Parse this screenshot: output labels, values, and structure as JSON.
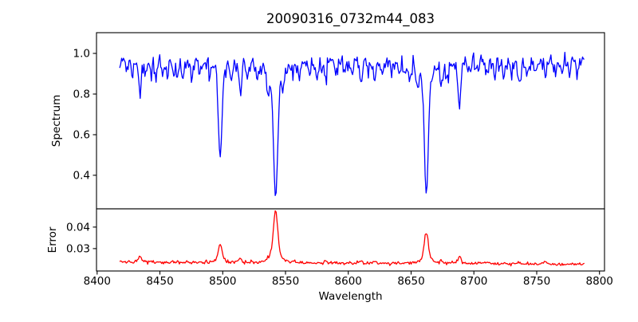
{
  "figure": {
    "background": "#ffffff",
    "axes_color": "#000000"
  },
  "chart_data": {
    "type": "line",
    "title": "20090316_0732m44_083",
    "xlabel": "Wavelength",
    "x_ticks": [
      8400,
      8450,
      8500,
      8550,
      8600,
      8650,
      8700,
      8750,
      8800
    ],
    "xlim": [
      8399.5,
      8804
    ],
    "x_start": 8418,
    "x_end": 8788,
    "n_points": 500,
    "seed": 20090316,
    "grid": false,
    "legend": "none",
    "panels": [
      {
        "name": "spectrum",
        "ylabel": "Spectrum",
        "line_color": "#0000ff",
        "ylim": [
          0.235,
          1.102
        ],
        "y_ticks": [
          0.4,
          0.6,
          0.8,
          1.0
        ],
        "y_tick_labels": [
          "0.4",
          "0.6",
          "0.8",
          "1.0"
        ],
        "continuum": 0.96,
        "noise_std": 0.021,
        "major_lines": [
          {
            "center": 8498.0,
            "depth": 0.4,
            "sigma": 1.3,
            "wing_depth": 0.075,
            "wing_gamma": 3.5,
            "min_flux": 0.49
          },
          {
            "center": 8542.1,
            "depth": 0.545,
            "sigma": 1.6,
            "wing_depth": 0.125,
            "wing_gamma": 6.0,
            "min_flux": 0.29
          },
          {
            "center": 8662.1,
            "depth": 0.525,
            "sigma": 1.5,
            "wing_depth": 0.12,
            "wing_gamma": 5.5,
            "min_flux": 0.31
          },
          {
            "center": 8688.6,
            "depth": 0.2,
            "sigma": 1.2,
            "wing_depth": 0.02,
            "wing_gamma": 2.5,
            "min_flux": 0.74
          }
        ],
        "minor_sigma": 1.0,
        "minor_lines": [
          [
            8424,
            0.055
          ],
          [
            8428,
            0.05
          ],
          [
            8434,
            0.145
          ],
          [
            8439,
            0.075
          ],
          [
            8443,
            0.05
          ],
          [
            8447,
            0.065
          ],
          [
            8452,
            0.05
          ],
          [
            8456,
            0.06
          ],
          [
            8461,
            0.05
          ],
          [
            8464,
            0.09
          ],
          [
            8468,
            0.08
          ],
          [
            8475,
            0.06
          ],
          [
            8482,
            0.07
          ],
          [
            8490,
            0.06
          ],
          [
            8507,
            0.07
          ],
          [
            8514,
            0.115
          ],
          [
            8520,
            0.08
          ],
          [
            8527,
            0.06
          ],
          [
            8536,
            0.1
          ],
          [
            8548,
            0.06
          ],
          [
            8556,
            0.05
          ],
          [
            8561,
            0.07
          ],
          [
            8569,
            0.05
          ],
          [
            8575,
            0.06
          ],
          [
            8582,
            0.1
          ],
          [
            8590,
            0.05
          ],
          [
            8597,
            0.07
          ],
          [
            8603,
            0.06
          ],
          [
            8610,
            0.1
          ],
          [
            8616,
            0.06
          ],
          [
            8621,
            0.1
          ],
          [
            8627,
            0.05
          ],
          [
            8634,
            0.06
          ],
          [
            8640,
            0.05
          ],
          [
            8645,
            0.09
          ],
          [
            8649,
            0.08
          ],
          [
            8655,
            0.07
          ],
          [
            8674,
            0.095
          ],
          [
            8679,
            0.07
          ],
          [
            8696,
            0.06
          ],
          [
            8702,
            0.05
          ],
          [
            8710,
            0.08
          ],
          [
            8717,
            0.06
          ],
          [
            8724,
            0.05
          ],
          [
            8730,
            0.06
          ],
          [
            8736,
            0.09
          ],
          [
            8742,
            0.06
          ],
          [
            8749,
            0.05
          ],
          [
            8757,
            0.085
          ],
          [
            8764,
            0.06
          ],
          [
            8770,
            0.05
          ],
          [
            8776,
            0.07
          ],
          [
            8782,
            0.05
          ]
        ]
      },
      {
        "name": "error",
        "ylabel": "Error",
        "line_color": "#ff0000",
        "ylim": [
          0.0196,
          0.0485
        ],
        "y_ticks": [
          0.03,
          0.04
        ],
        "y_tick_labels": [
          "0.03",
          "0.04"
        ],
        "baseline_start": 0.0237,
        "baseline_end": 0.0227,
        "noise_std": 0.00035,
        "peaks": [
          [
            8434.0,
            0.0028,
            1.1
          ],
          [
            8498.0,
            0.0085,
            1.4
          ],
          [
            8514.0,
            0.0018,
            1.0
          ],
          [
            8536.0,
            0.0012,
            1.0
          ],
          [
            8542.1,
            0.024,
            1.7
          ],
          [
            8582.0,
            0.0012,
            1.0
          ],
          [
            8610.0,
            0.001,
            1.0
          ],
          [
            8621.0,
            0.001,
            1.0
          ],
          [
            8662.1,
            0.0145,
            1.6
          ],
          [
            8674.0,
            0.0012,
            1.0
          ],
          [
            8688.6,
            0.0035,
            1.2
          ],
          [
            8710.0,
            0.0008,
            1.0
          ],
          [
            8736.0,
            0.0008,
            1.0
          ],
          [
            8757.0,
            0.0008,
            1.0
          ]
        ],
        "peak_max_value": 0.0477
      }
    ]
  }
}
